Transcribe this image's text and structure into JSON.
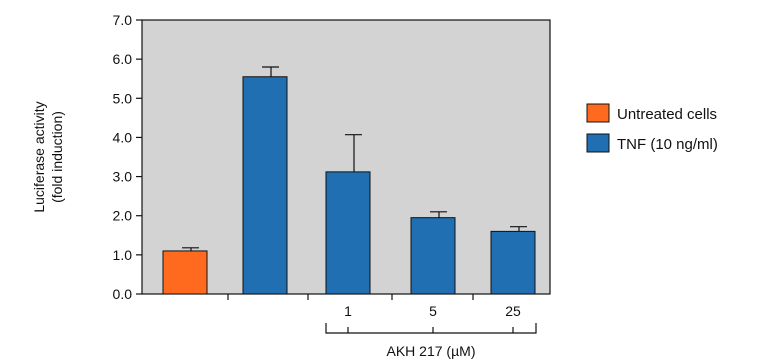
{
  "chart_data": {
    "type": "bar",
    "ylabel_line1": "Luciferase activity",
    "ylabel_line2": "(fold induction)",
    "ylim": [
      0,
      7
    ],
    "yticks": [
      "0.0",
      "1.0",
      "2.0",
      "3.0",
      "4.0",
      "5.0",
      "6.0",
      "7.0"
    ],
    "grid": false,
    "categories": [
      "",
      "",
      "1",
      "5",
      "25"
    ],
    "bracket_label": "AKH 217 (µM)",
    "bars": [
      {
        "category": "",
        "series": "Untreated cells",
        "value": 1.1,
        "error": 0.08
      },
      {
        "category": "",
        "series": "TNF (10 ng/ml)",
        "value": 5.55,
        "error": 0.25
      },
      {
        "category": "1",
        "series": "TNF (10 ng/ml)",
        "value": 3.12,
        "error": 0.95
      },
      {
        "category": "5",
        "series": "TNF (10 ng/ml)",
        "value": 1.95,
        "error": 0.15
      },
      {
        "category": "25",
        "series": "TNF (10 ng/ml)",
        "value": 1.6,
        "error": 0.12
      }
    ],
    "legend": [
      {
        "name": "Untreated cells",
        "color": "#ff6a1f"
      },
      {
        "name": "TNF (10 ng/ml)",
        "color": "#1f6fb2"
      }
    ],
    "legend_position": "right",
    "plot_background": "#d3d3d3"
  }
}
